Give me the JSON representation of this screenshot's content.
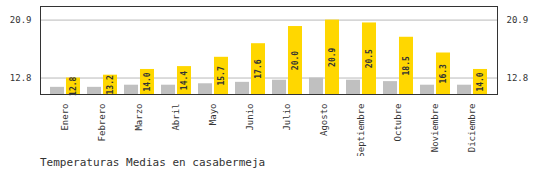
{
  "chart_data": {
    "type": "bar",
    "title": "Temperaturas Medias en casabermeja",
    "categories": [
      "Enero",
      "Febrero",
      "Marzo",
      "Abril",
      "Mayo",
      "Junio",
      "Julio",
      "Agosto",
      "Septiembre",
      "Octubre",
      "Noviembre",
      "Diciembre"
    ],
    "series": [
      {
        "color": "#C0C0C0",
        "values": [
          11.5,
          11.5,
          11.8,
          11.8,
          12.0,
          12.2,
          12.5,
          12.8,
          12.5,
          12.3,
          11.8,
          11.8
        ]
      },
      {
        "color": "#FFD700",
        "values": [
          12.8,
          13.2,
          14.0,
          14.4,
          15.7,
          17.6,
          20.0,
          20.9,
          20.5,
          18.5,
          16.3,
          14.0
        ],
        "data_labels": true,
        "value_labels": [
          "12.8",
          "13.2",
          "14.0",
          "14.4",
          "15.7",
          "17.6",
          "20.0",
          "20.9",
          "20.5",
          "18.5",
          "16.3",
          "14.0"
        ]
      }
    ],
    "ylim": [
      10.5,
      22.8
    ],
    "yticks": [
      12.8,
      20.9
    ],
    "grid": true
  }
}
